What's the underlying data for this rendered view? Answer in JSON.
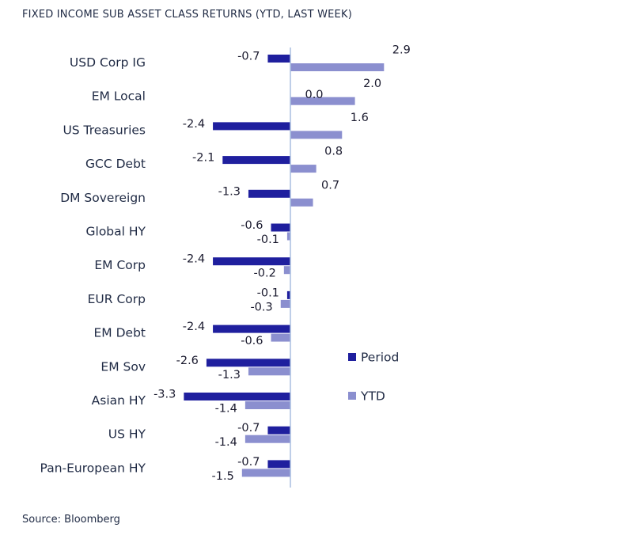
{
  "chart_data": {
    "type": "bar",
    "orientation": "horizontal",
    "title": "FIXED INCOME SUB ASSET CLASS RETURNS (YTD, LAST WEEK)",
    "source": "Source: Bloomberg",
    "categories": [
      "USD Corp IG",
      "EM Local",
      "US Treasuries",
      "GCC Debt",
      "DM Sovereign",
      "Global HY",
      "EM Corp",
      "EUR Corp",
      "EM Debt",
      "EM Sov",
      "Asian HY",
      "US HY",
      "Pan-European HY"
    ],
    "series": [
      {
        "name": "Period",
        "color": "#1f1f9e",
        "values": [
          -0.7,
          0.0,
          -2.4,
          -2.1,
          -1.3,
          -0.6,
          -2.4,
          -0.1,
          -2.4,
          -2.6,
          -3.3,
          -0.7,
          -0.7
        ],
        "labels": [
          "-0.7",
          "0.0",
          "-2.4",
          "-2.1",
          "-1.3",
          "-0.6",
          "-2.4",
          "-0.1",
          "-2.4",
          "-2.6",
          "-3.3",
          "-0.7",
          "-0.7"
        ]
      },
      {
        "name": "YTD",
        "color": "#8b8fcf",
        "values": [
          2.9,
          2.0,
          1.6,
          0.8,
          0.7,
          -0.1,
          -0.2,
          -0.3,
          -0.6,
          -1.3,
          -1.4,
          -1.4,
          -1.5
        ],
        "labels": [
          "2.9",
          "2.0",
          "1.6",
          "0.8",
          "0.7",
          "-0.1",
          "-0.2",
          "-0.3",
          "-0.6",
          "-1.3",
          "-1.4",
          "-1.4",
          "-1.5"
        ]
      }
    ],
    "xlim": [
      -3.3,
      2.9
    ],
    "grid": false,
    "legend": "right"
  }
}
